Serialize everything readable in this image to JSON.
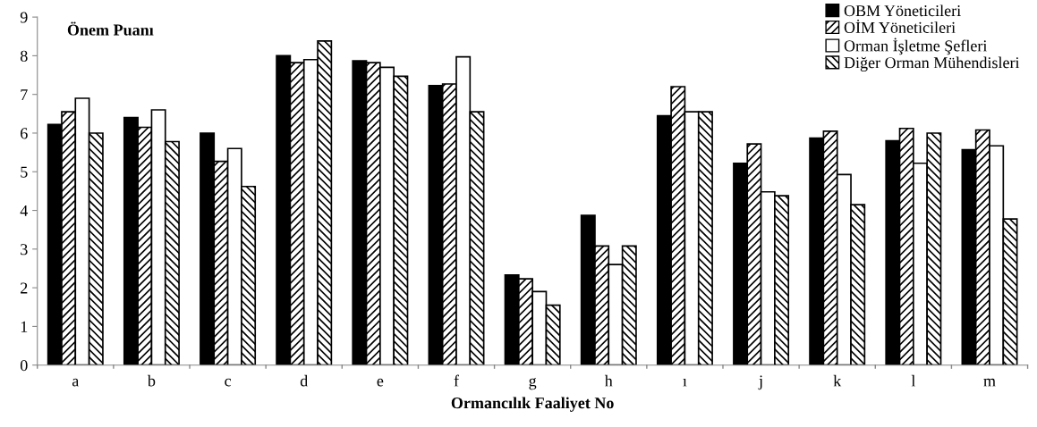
{
  "chart_data": {
    "type": "bar",
    "ylabel": "Önem Puanı",
    "xlabel": "Ormancılık Faaliyet No",
    "categories": [
      "a",
      "b",
      "c",
      "d",
      "e",
      "f",
      "g",
      "h",
      "ı",
      "j",
      "k",
      "l",
      "m"
    ],
    "series": [
      {
        "name": "OBM Yöneticileri",
        "color": "#000000",
        "values": [
          6.22,
          6.4,
          6.0,
          8.0,
          7.87,
          7.23,
          2.33,
          3.87,
          6.45,
          5.22,
          5.87,
          5.8,
          5.57
        ]
      },
      {
        "name": "OİM Yöneticileri",
        "color": "#000000",
        "values": [
          6.55,
          6.15,
          5.27,
          7.82,
          7.82,
          7.27,
          2.23,
          3.08,
          7.2,
          5.72,
          6.05,
          6.12,
          6.08
        ]
      },
      {
        "name": "Orman İşletme Şefleri",
        "color": "#ffffff",
        "values": [
          6.9,
          6.6,
          5.6,
          7.9,
          7.7,
          7.97,
          1.9,
          2.6,
          6.55,
          4.48,
          4.93,
          5.22,
          5.67
        ]
      },
      {
        "name": "Diğer Orman Mühendisleri",
        "color": "#000000",
        "values": [
          6.0,
          5.78,
          4.62,
          8.38,
          7.47,
          6.55,
          1.55,
          3.08,
          6.55,
          4.38,
          4.15,
          6.0,
          3.78
        ]
      }
    ],
    "ylim": [
      0,
      9
    ],
    "yticks": [
      0,
      1,
      2,
      3,
      4,
      5,
      6,
      7,
      8,
      9
    ],
    "grid": false,
    "legend": "top right"
  }
}
